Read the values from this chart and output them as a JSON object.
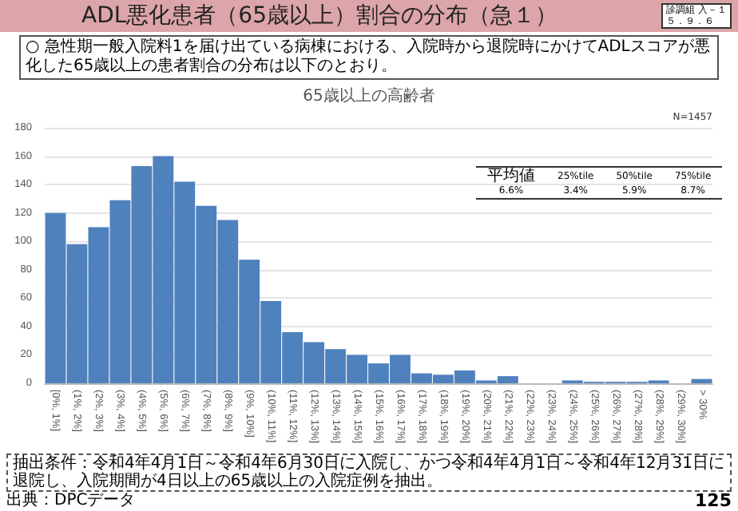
{
  "chart_data": {
    "type": "bar",
    "title": "ADL悪化患者（65歳以上）割合の分布（急１）",
    "subtitle": "○ 急性期一般入院料1を届け出ている病棟における、入院時から退院時にかけてADLスコアが悪化した65歳以上の患者割合の分布は以下のとおり。",
    "categories": [
      "[0%, 1%]",
      "(1%, 2%]",
      "(2%, 3%]",
      "(3%, 4%]",
      "(4%, 5%]",
      "(5%, 6%]",
      "(6%, 7%]",
      "(7%, 8%]",
      "(8%, 9%]",
      "(9%, 10%]",
      "(10%, 11%]",
      "(11%, 12%]",
      "(12%, 13%]",
      "(13%, 14%]",
      "(14%, 15%]",
      "(15%, 16%]",
      "(16%, 17%]",
      "(17%, 18%]",
      "(18%, 19%]",
      "(19%, 20%]",
      "(20%, 21%]",
      "(21%, 22%]",
      "(22%, 23%]",
      "(23%, 24%]",
      "(24%, 25%]",
      "(25%, 26%]",
      "(26%, 27%]",
      "(27%, 28%]",
      "(28%, 29%]",
      "(29%, 30%]",
      "> 30%"
    ],
    "values": [
      120,
      98,
      110,
      129,
      153,
      160,
      142,
      125,
      115,
      87,
      58,
      36,
      29,
      24,
      20,
      14,
      20,
      7,
      6,
      9,
      2,
      5,
      0,
      0,
      2,
      1,
      1,
      1,
      2,
      0,
      3
    ],
    "color": "#4f81bd",
    "ylim": [
      0,
      180
    ],
    "yticks": [
      0,
      20,
      40,
      60,
      80,
      100,
      120,
      140,
      160,
      180
    ],
    "grid": "y",
    "annotations": [
      "診調組 入－１",
      "５．９．６",
      "65歳以上の高齢者",
      "N=1457",
      "平均値",
      "25%tile",
      "50%tile",
      "75%tile",
      "6.6%",
      "3.4%",
      "5.9%",
      "8.7%",
      "抽出条件：令和4年4月1日～令和4年6月30日に入院し、かつ令和4年4月1日～令和4年12月31日に退院し、入院期間が4日以上の65歳以上の入院症例を抽出。",
      "出典：DPCデータ",
      "125"
    ]
  }
}
